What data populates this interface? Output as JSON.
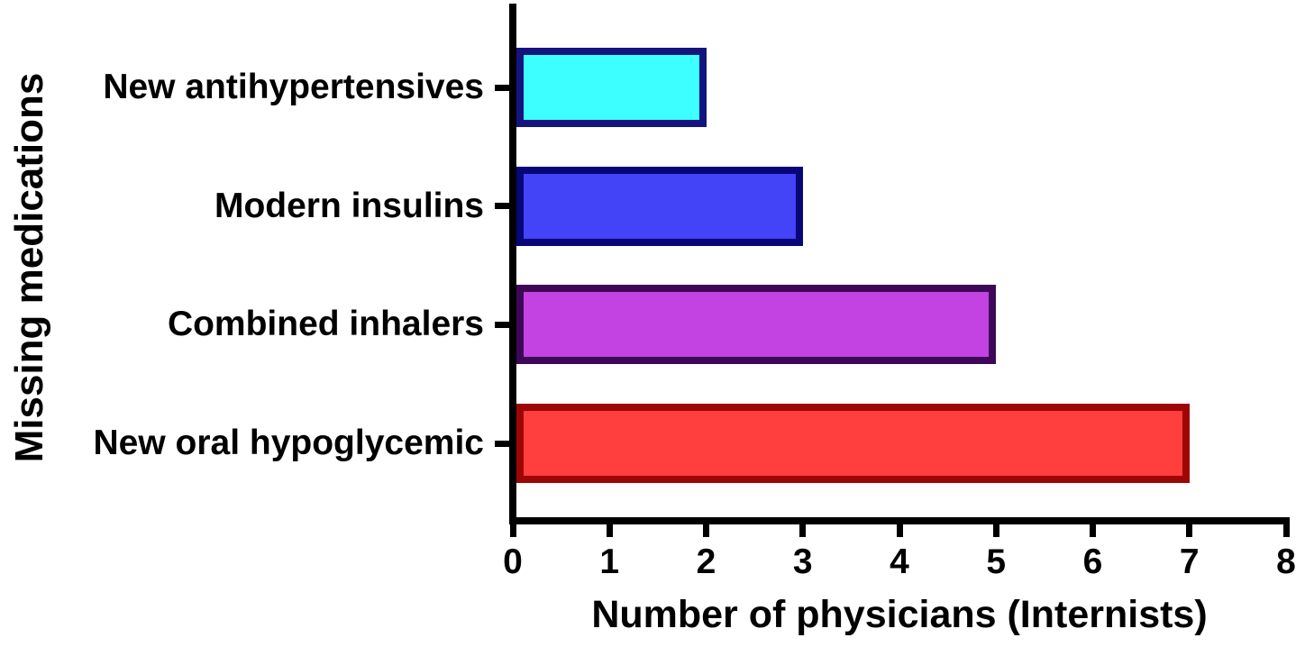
{
  "chart_data": {
    "type": "bar",
    "orientation": "horizontal",
    "title": "",
    "xlabel": "Number of physicians (Internists)",
    "ylabel": "Missing medications",
    "categories": [
      "New antihypertensives",
      "Modern insulins",
      "Combined inhalers",
      "New oral hypoglycemic"
    ],
    "values": [
      2,
      3,
      5,
      7
    ],
    "bar_colors": [
      {
        "fill": "#3EFFFF",
        "border": "#14147E"
      },
      {
        "fill": "#4343F8",
        "border": "#070778"
      },
      {
        "fill": "#C342E2",
        "border": "#3D0857"
      },
      {
        "fill": "#FF3E3E",
        "border": "#9E0606"
      }
    ],
    "x_ticks": [
      0,
      1,
      2,
      3,
      4,
      5,
      6,
      7,
      8
    ],
    "xlim": [
      0,
      8
    ],
    "grid": false,
    "legend": false,
    "axis_color": "#000000",
    "text_color": "#000000",
    "background": "#FFFFFF"
  }
}
